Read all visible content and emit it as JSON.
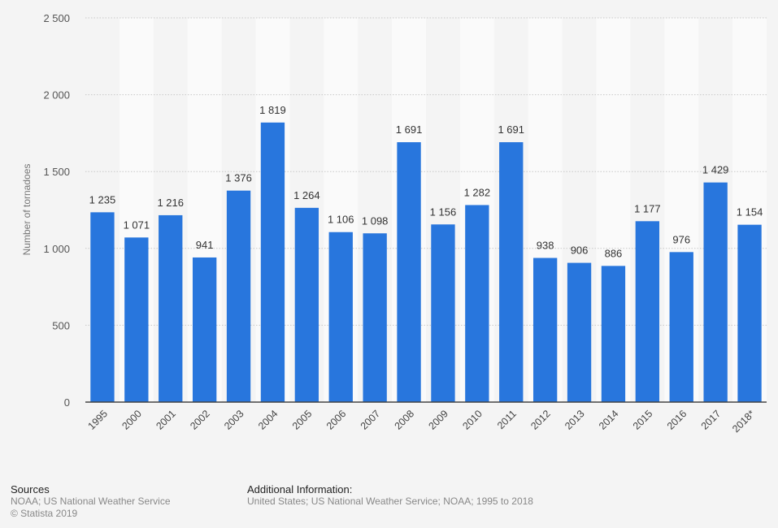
{
  "chart_data": {
    "type": "bar",
    "title": "",
    "xlabel": "",
    "ylabel": "Number of tornadoes",
    "ylim": [
      0,
      2500
    ],
    "yticks": [
      0,
      500,
      1000,
      1500,
      2000,
      2500
    ],
    "ytick_labels": [
      "0",
      "500",
      "1 000",
      "1 500",
      "2 000",
      "2 500"
    ],
    "grid": true,
    "bar_color": "#2876dd",
    "categories": [
      "1995",
      "2000",
      "2001",
      "2002",
      "2003",
      "2004",
      "2005",
      "2006",
      "2007",
      "2008",
      "2009",
      "2010",
      "2011",
      "2012",
      "2013",
      "2014",
      "2015",
      "2016",
      "2017",
      "2018*"
    ],
    "values": [
      1235,
      1071,
      1216,
      941,
      1376,
      1819,
      1264,
      1106,
      1098,
      1691,
      1156,
      1282,
      1691,
      938,
      906,
      886,
      1177,
      976,
      1429,
      1154
    ],
    "data_labels": [
      "1 235",
      "1 071",
      "1 216",
      "941",
      "1 376",
      "1 819",
      "1 264",
      "1 106",
      "1 098",
      "1 691",
      "1 156",
      "1 282",
      "1 691",
      "938",
      "906",
      "886",
      "1 177",
      "976",
      "1 429",
      "1 154"
    ]
  },
  "footer": {
    "sources_heading": "Sources",
    "sources_line1": "NOAA; US National Weather Service",
    "sources_line2": "© Statista 2019",
    "additional_heading": "Additional Information:",
    "additional_text": "United States; US National Weather Service; NOAA; 1995 to 2018"
  }
}
